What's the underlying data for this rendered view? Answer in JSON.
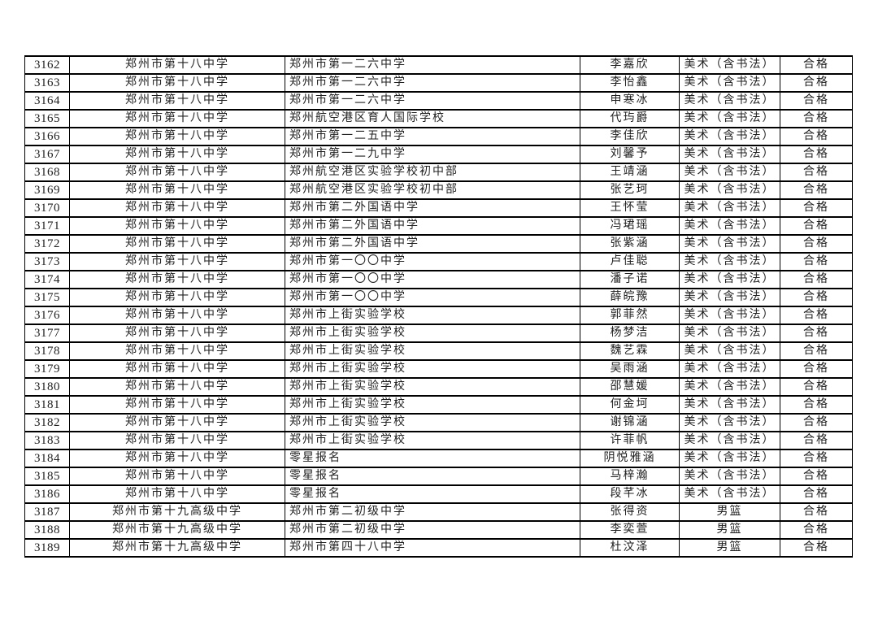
{
  "page": {
    "background_color": "#ffffff",
    "text_color": "#212121",
    "border_color": "#000000"
  },
  "table": {
    "rows": [
      [
        "3162",
        "郑州市第十八中学",
        "郑州市第一二六中学",
        "李嘉欣",
        "美术（含书法）",
        "合格"
      ],
      [
        "3163",
        "郑州市第十八中学",
        "郑州市第一二六中学",
        "李怡鑫",
        "美术（含书法）",
        "合格"
      ],
      [
        "3164",
        "郑州市第十八中学",
        "郑州市第一二六中学",
        "申寒冰",
        "美术（含书法）",
        "合格"
      ],
      [
        "3165",
        "郑州市第十八中学",
        "郑州航空港区育人国际学校",
        "代玙爵",
        "美术（含书法）",
        "合格"
      ],
      [
        "3166",
        "郑州市第十八中学",
        "郑州市第一二五中学",
        "李佳欣",
        "美术（含书法）",
        "合格"
      ],
      [
        "3167",
        "郑州市第十八中学",
        "郑州市第一二九中学",
        "刘馨予",
        "美术（含书法）",
        "合格"
      ],
      [
        "3168",
        "郑州市第十八中学",
        "郑州航空港区实验学校初中部",
        "王靖涵",
        "美术（含书法）",
        "合格"
      ],
      [
        "3169",
        "郑州市第十八中学",
        "郑州航空港区实验学校初中部",
        "张艺珂",
        "美术（含书法）",
        "合格"
      ],
      [
        "3170",
        "郑州市第十八中学",
        "郑州市第二外国语中学",
        "王怀莹",
        "美术（含书法）",
        "合格"
      ],
      [
        "3171",
        "郑州市第十八中学",
        "郑州市第二外国语中学",
        "冯珺瑶",
        "美术（含书法）",
        "合格"
      ],
      [
        "3172",
        "郑州市第十八中学",
        "郑州市第二外国语中学",
        "张紫涵",
        "美术（含书法）",
        "合格"
      ],
      [
        "3173",
        "郑州市第十八中学",
        "郑州市第一〇〇中学",
        "卢佳聪",
        "美术（含书法）",
        "合格"
      ],
      [
        "3174",
        "郑州市第十八中学",
        "郑州市第一〇〇中学",
        "潘子诺",
        "美术（含书法）",
        "合格"
      ],
      [
        "3175",
        "郑州市第十八中学",
        "郑州市第一〇〇中学",
        "薛皖豫",
        "美术（含书法）",
        "合格"
      ],
      [
        "3176",
        "郑州市第十八中学",
        "郑州市上街实验学校",
        "郭菲然",
        "美术（含书法）",
        "合格"
      ],
      [
        "3177",
        "郑州市第十八中学",
        "郑州市上街实验学校",
        "杨梦洁",
        "美术（含书法）",
        "合格"
      ],
      [
        "3178",
        "郑州市第十八中学",
        "郑州市上街实验学校",
        "魏艺霖",
        "美术（含书法）",
        "合格"
      ],
      [
        "3179",
        "郑州市第十八中学",
        "郑州市上街实验学校",
        "吴雨涵",
        "美术（含书法）",
        "合格"
      ],
      [
        "3180",
        "郑州市第十八中学",
        "郑州市上街实验学校",
        "邵慧媛",
        "美术（含书法）",
        "合格"
      ],
      [
        "3181",
        "郑州市第十八中学",
        "郑州市上街实验学校",
        "何金坷",
        "美术（含书法）",
        "合格"
      ],
      [
        "3182",
        "郑州市第十八中学",
        "郑州市上街实验学校",
        "谢锦涵",
        "美术（含书法）",
        "合格"
      ],
      [
        "3183",
        "郑州市第十八中学",
        "郑州市上街实验学校",
        "许菲帆",
        "美术（含书法）",
        "合格"
      ],
      [
        "3184",
        "郑州市第十八中学",
        "零星报名",
        "阴悦雅涵",
        "美术（含书法）",
        "合格"
      ],
      [
        "3185",
        "郑州市第十八中学",
        "零星报名",
        "马梓瀚",
        "美术（含书法）",
        "合格"
      ],
      [
        "3186",
        "郑州市第十八中学",
        "零星报名",
        "段芊冰",
        "美术（含书法）",
        "合格"
      ],
      [
        "3187",
        "郑州市第十九高级中学",
        "郑州市第二初级中学",
        "张得资",
        "男篮",
        "合格"
      ],
      [
        "3188",
        "郑州市第十九高级中学",
        "郑州市第二初级中学",
        "李奕萱",
        "男篮",
        "合格"
      ],
      [
        "3189",
        "郑州市第十九高级中学",
        "郑州市第四十八中学",
        "杜汶泽",
        "男篮",
        "合格"
      ]
    ]
  }
}
